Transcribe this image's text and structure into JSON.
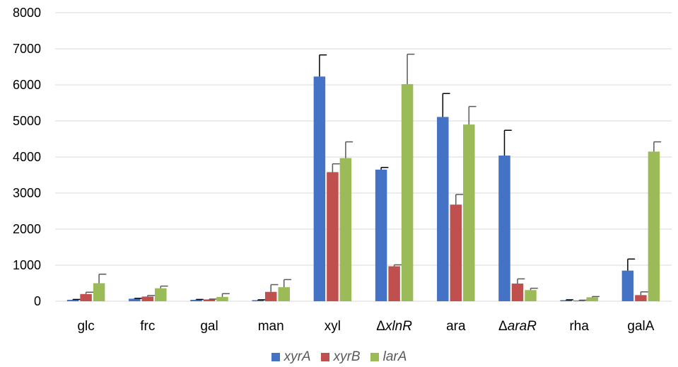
{
  "chart_data": {
    "type": "bar",
    "categories": [
      "glc",
      "frc",
      "gal",
      "man",
      "xyl",
      "ΔxlnR",
      "ara",
      "ΔaraR",
      "rha",
      "galA"
    ],
    "category_parts": [
      {
        "prefix": "",
        "name": "glc"
      },
      {
        "prefix": "",
        "name": "frc"
      },
      {
        "prefix": "",
        "name": "gal"
      },
      {
        "prefix": "",
        "name": "man"
      },
      {
        "prefix": "",
        "name": "xyl"
      },
      {
        "prefix": "Δ",
        "name": "xlnR",
        "italic": true
      },
      {
        "prefix": "",
        "name": "ara"
      },
      {
        "prefix": "Δ",
        "name": "araR",
        "italic": true
      },
      {
        "prefix": "",
        "name": "rha"
      },
      {
        "prefix": "",
        "name": "galA"
      }
    ],
    "series": [
      {
        "name": "xyrA",
        "color": "#4472C4",
        "values": [
          40,
          70,
          40,
          30,
          6230,
          3650,
          5110,
          4040,
          30,
          850
        ],
        "errors": [
          10,
          10,
          10,
          10,
          600,
          60,
          650,
          700,
          10,
          320
        ]
      },
      {
        "name": "xyrB",
        "color": "#C0504D",
        "values": [
          200,
          130,
          50,
          260,
          3580,
          970,
          2680,
          490,
          20,
          170
        ],
        "errors": [
          50,
          30,
          10,
          200,
          230,
          40,
          280,
          130,
          10,
          90
        ]
      },
      {
        "name": "larA",
        "color": "#9BBB59",
        "values": [
          500,
          360,
          120,
          390,
          3970,
          6020,
          4900,
          310,
          110,
          4150
        ],
        "errors": [
          250,
          60,
          90,
          210,
          450,
          830,
          500,
          50,
          20,
          270
        ]
      }
    ],
    "yticks": [
      "0",
      "1000",
      "2000",
      "3000",
      "4000",
      "5000",
      "6000",
      "7000",
      "8000"
    ],
    "ylim": [
      0,
      8000
    ],
    "grid": true,
    "legend_position": "bottom"
  }
}
